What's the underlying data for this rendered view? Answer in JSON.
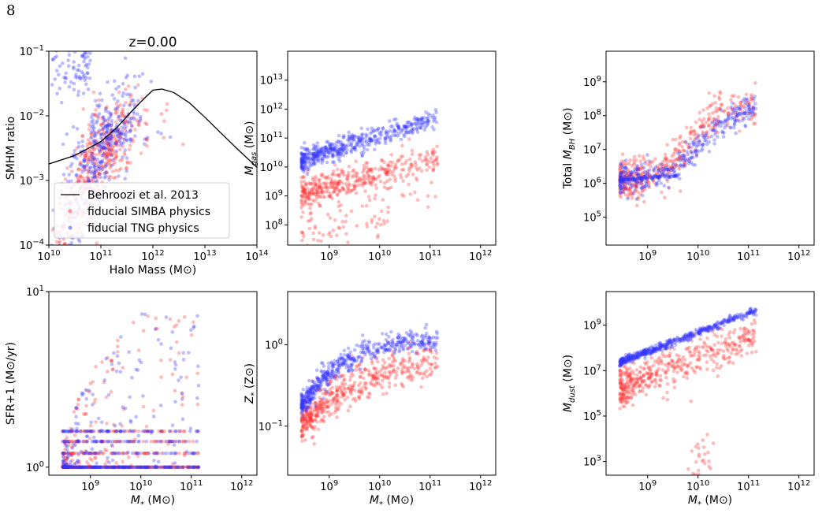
{
  "page_number": "8",
  "colors": {
    "simba": "#ff3333",
    "tng": "#3333ff",
    "reference": "#000000"
  },
  "chart_data": [
    {
      "id": "smhm",
      "type": "scatter",
      "title": "z=0.00",
      "xlabel": "Halo Mass (M⊙)",
      "ylabel": "SMHM ratio",
      "xscale": "log",
      "yscale": "log",
      "xlim": [
        10000000000.0,
        100000000000000.0
      ],
      "ylim": [
        0.0001,
        0.1
      ],
      "xticks": [
        {
          "v": 10000000000.0,
          "b": "10",
          "e": "10"
        },
        {
          "v": 100000000000.0,
          "b": "10",
          "e": "11"
        },
        {
          "v": 1000000000000.0,
          "b": "10",
          "e": "12"
        },
        {
          "v": 10000000000000.0,
          "b": "10",
          "e": "13"
        },
        {
          "v": 100000000000000.0,
          "b": "10",
          "e": "14"
        }
      ],
      "yticks": [
        {
          "v": 0.0001,
          "b": "10",
          "e": "−4"
        },
        {
          "v": 0.001,
          "b": "10",
          "e": "−3"
        },
        {
          "v": 0.01,
          "b": "10",
          "e": "−2"
        },
        {
          "v": 0.1,
          "b": "10",
          "e": "−1"
        }
      ],
      "legend": {
        "position": "lower-left",
        "entries": [
          "Behroozi et al. 2013",
          "fiducial SIMBA physics",
          "fiducial TNG physics"
        ]
      },
      "lines": [
        {
          "name": "Behroozi et al. 2013",
          "x": [
            10000000000.0,
            30000000000.0,
            60000000000.0,
            100000000000.0,
            200000000000.0,
            400000000000.0,
            700000000000.0,
            1000000000000.0,
            1500000000000.0,
            2500000000000.0,
            5000000000000.0,
            10000000000000.0,
            20000000000000.0,
            40000000000000.0,
            100000000000000.0
          ],
          "y": [
            0.0018,
            0.0024,
            0.0032,
            0.004,
            0.0065,
            0.012,
            0.019,
            0.025,
            0.026,
            0.023,
            0.016,
            0.0095,
            0.0055,
            0.0032,
            0.0016
          ]
        }
      ],
      "series": [
        {
          "name": "fiducial SIMBA physics",
          "gen": {
            "type": "smhm",
            "n": 480,
            "seed": 11,
            "off": -0.25
          }
        },
        {
          "name": "fiducial TNG physics",
          "gen": {
            "type": "smhm",
            "n": 480,
            "seed": 12,
            "off": 0.05
          }
        }
      ]
    },
    {
      "id": "mgas",
      "type": "scatter",
      "ylabel": "M_gas (M⊙)",
      "xscale": "log",
      "yscale": "log",
      "xlim": [
        150000000.0,
        2000000000000.0
      ],
      "ylim": [
        20000000.0,
        100000000000000.0
      ],
      "xticks": [
        {
          "v": 1000000000.0,
          "b": "10",
          "e": "9"
        },
        {
          "v": 10000000000.0,
          "b": "10",
          "e": "10"
        },
        {
          "v": 100000000000.0,
          "b": "10",
          "e": "11"
        },
        {
          "v": 1000000000000.0,
          "b": "10",
          "e": "12"
        }
      ],
      "yticks": [
        {
          "v": 100000000.0,
          "b": "10",
          "e": "8"
        },
        {
          "v": 1000000000.0,
          "b": "10",
          "e": "9"
        },
        {
          "v": 10000000000.0,
          "b": "10",
          "e": "10"
        },
        {
          "v": 100000000000.0,
          "b": "10",
          "e": "11"
        },
        {
          "v": 1000000000000.0,
          "b": "10",
          "e": "12"
        },
        {
          "v": 10000000000000.0,
          "b": "10",
          "e": "13"
        }
      ],
      "series": [
        {
          "name": "SIMBA",
          "gen": {
            "type": "lin",
            "n": 480,
            "seed": 21,
            "a": 9.1,
            "s": 0.45,
            "sc": 0.28,
            "tail": 0.15
          }
        },
        {
          "name": "TNG",
          "gen": {
            "type": "lin",
            "n": 480,
            "seed": 22,
            "a": 10.25,
            "s": 0.55,
            "sc": 0.18,
            "tail": 0
          }
        }
      ]
    },
    {
      "id": "mbh",
      "type": "scatter",
      "ylabel": "Total M_BH (M⊙)",
      "xscale": "log",
      "yscale": "log",
      "xlim": [
        150000000.0,
        2000000000000.0
      ],
      "ylim": [
        15000.0,
        8000000000.0
      ],
      "xticks": [
        {
          "v": 1000000000.0,
          "b": "10",
          "e": "9"
        },
        {
          "v": 10000000000.0,
          "b": "10",
          "e": "10"
        },
        {
          "v": 100000000000.0,
          "b": "10",
          "e": "11"
        },
        {
          "v": 1000000000000.0,
          "b": "10",
          "e": "12"
        }
      ],
      "yticks": [
        {
          "v": 100000.0,
          "b": "10",
          "e": "5"
        },
        {
          "v": 1000000.0,
          "b": "10",
          "e": "6"
        },
        {
          "v": 10000000.0,
          "b": "10",
          "e": "7"
        },
        {
          "v": 100000000.0,
          "b": "10",
          "e": "8"
        },
        {
          "v": 1000000000.0,
          "b": "10",
          "e": "9"
        }
      ],
      "series": [
        {
          "name": "SIMBA",
          "gen": {
            "type": "sig",
            "n": 420,
            "seed": 31,
            "lo": 6.1,
            "hi": 8.35,
            "c": 9.85,
            "w": 0.3,
            "sc": 0.3,
            "seedfrac": 0.03
          }
        },
        {
          "name": "TNG",
          "gen": {
            "type": "sig",
            "n": 420,
            "seed": 32,
            "lo": 6.1,
            "hi": 8.3,
            "c": 10.1,
            "w": 0.35,
            "sc": 0.22,
            "seedfrac": 0.35
          }
        }
      ]
    },
    {
      "id": "sfr",
      "type": "scatter",
      "xlabel": "M_* (M⊙)",
      "ylabel": "SFR+1 (M⊙/yr)",
      "xscale": "log",
      "yscale": "log",
      "xlim": [
        150000000.0,
        2000000000000.0
      ],
      "ylim": [
        0.9,
        10
      ],
      "xticks": [
        {
          "v": 1000000000.0,
          "b": "10",
          "e": "9"
        },
        {
          "v": 10000000000.0,
          "b": "10",
          "e": "10"
        },
        {
          "v": 100000000000.0,
          "b": "10",
          "e": "11"
        },
        {
          "v": 1000000000000.0,
          "b": "10",
          "e": "12"
        }
      ],
      "yticks": [
        {
          "v": 1,
          "b": "10",
          "e": "0"
        },
        {
          "v": 10,
          "b": "10",
          "e": "1"
        }
      ],
      "series": [
        {
          "name": "SIMBA",
          "gen": {
            "type": "sfr",
            "n": 480,
            "seed": 41
          }
        },
        {
          "name": "TNG",
          "gen": {
            "type": "sfr",
            "n": 480,
            "seed": 42
          }
        }
      ]
    },
    {
      "id": "zstar",
      "type": "scatter",
      "xlabel": "M_* (M⊙)",
      "ylabel": "Z_* (Z⊙)",
      "xscale": "log",
      "yscale": "log",
      "xlim": [
        150000000.0,
        2000000000000.0
      ],
      "ylim": [
        0.025,
        4.5
      ],
      "xticks": [
        {
          "v": 1000000000.0,
          "b": "10",
          "e": "9"
        },
        {
          "v": 10000000000.0,
          "b": "10",
          "e": "10"
        },
        {
          "v": 100000000000.0,
          "b": "10",
          "e": "11"
        },
        {
          "v": 1000000000000.0,
          "b": "10",
          "e": "12"
        }
      ],
      "yticks": [
        {
          "v": 0.1,
          "b": "10",
          "e": "−1"
        },
        {
          "v": 1,
          "b": "10",
          "e": "0"
        }
      ],
      "series": [
        {
          "name": "SIMBA",
          "gen": {
            "type": "curve",
            "n": 500,
            "seed": 51,
            "ymin": -1.05,
            "ymax": -0.1,
            "k": 0.85,
            "sc": 0.12
          }
        },
        {
          "name": "TNG",
          "gen": {
            "type": "curve",
            "n": 500,
            "seed": 52,
            "ymin": -0.8,
            "ymax": 0.12,
            "k": 1.1,
            "sc": 0.07
          }
        }
      ]
    },
    {
      "id": "mdust",
      "type": "scatter",
      "xlabel": "M_* (M⊙)",
      "ylabel": "M_dust (M⊙)",
      "xscale": "log",
      "yscale": "log",
      "xlim": [
        150000000.0,
        2000000000000.0
      ],
      "ylim": [
        250.0,
        30000000000.0
      ],
      "xticks": [
        {
          "v": 1000000000.0,
          "b": "10",
          "e": "9"
        },
        {
          "v": 10000000000.0,
          "b": "10",
          "e": "10"
        },
        {
          "v": 100000000000.0,
          "b": "10",
          "e": "11"
        },
        {
          "v": 1000000000000.0,
          "b": "10",
          "e": "12"
        }
      ],
      "yticks": [
        {
          "v": 1000.0,
          "b": "10",
          "e": "3"
        },
        {
          "v": 100000.0,
          "b": "10",
          "e": "5"
        },
        {
          "v": 10000000.0,
          "b": "10",
          "e": "7"
        },
        {
          "v": 1000000000.0,
          "b": "10",
          "e": "9"
        }
      ],
      "series": [
        {
          "name": "SIMBA",
          "gen": {
            "type": "dust",
            "n": 480,
            "seed": 61,
            "a": 6.3,
            "s": 0.85,
            "sc": 0.45,
            "low": 0.08
          }
        },
        {
          "name": "TNG",
          "gen": {
            "type": "lin",
            "n": 480,
            "seed": 62,
            "a": 7.4,
            "s": 0.85,
            "sc": 0.08,
            "tail": 0
          }
        }
      ]
    }
  ]
}
